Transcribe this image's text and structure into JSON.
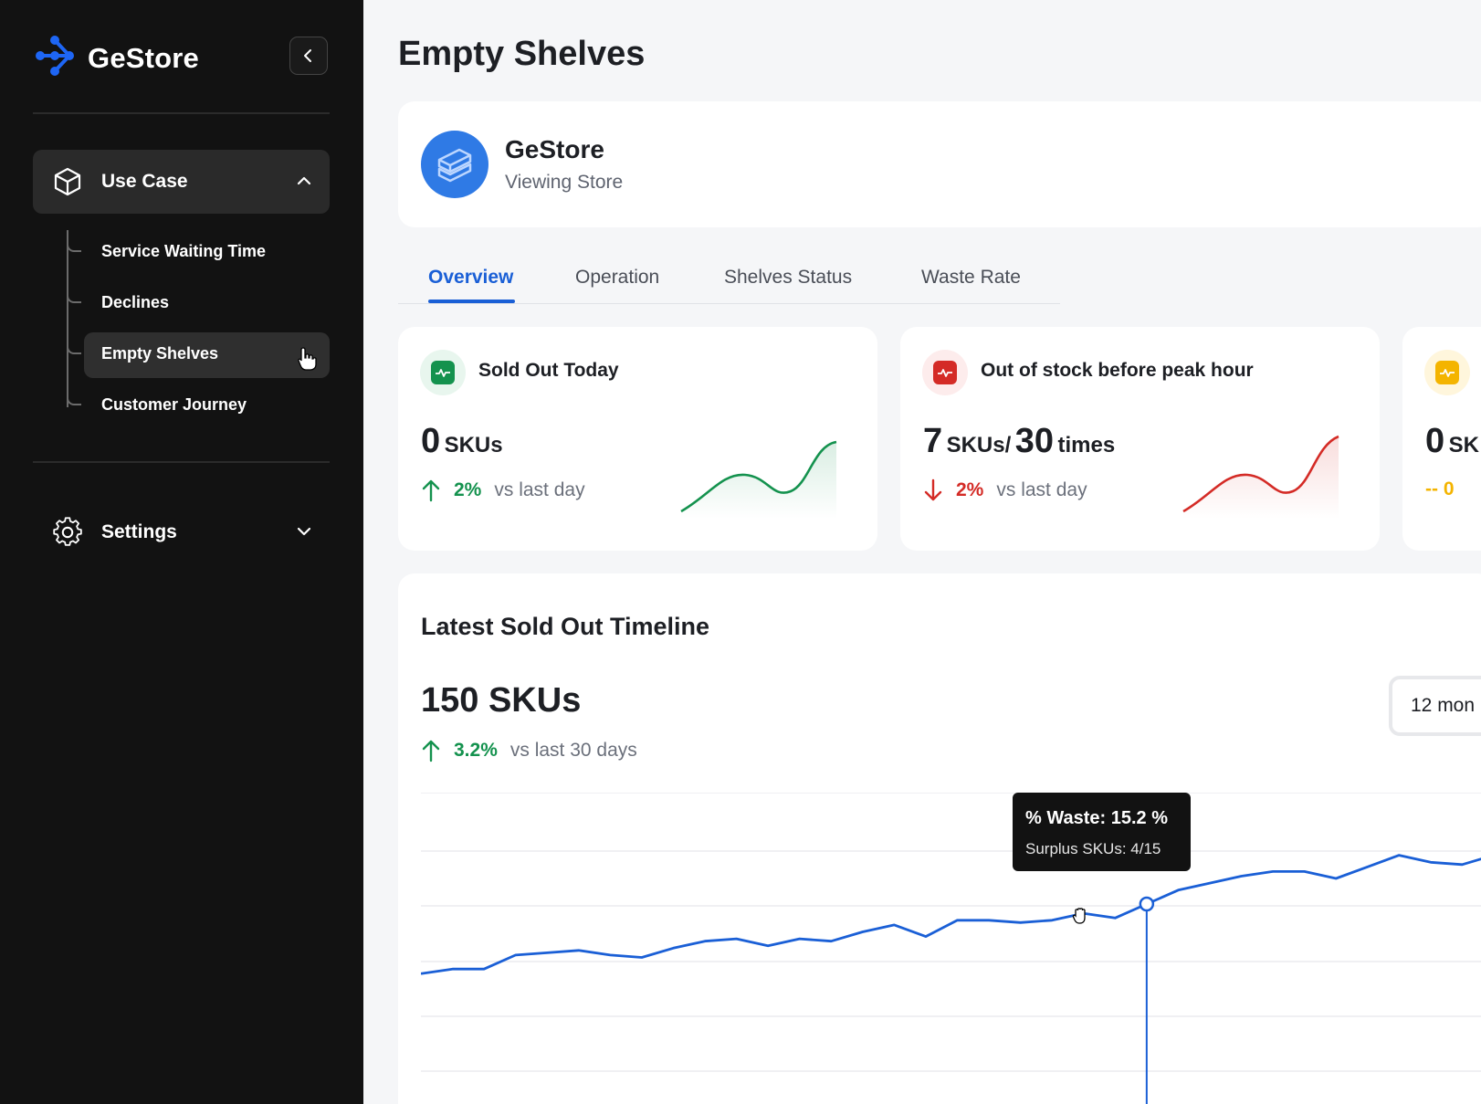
{
  "sidebar": {
    "brand_name": "GeStore",
    "use_case_label": "Use Case",
    "sub_items": [
      {
        "label": "Service Waiting Time"
      },
      {
        "label": "Declines"
      },
      {
        "label": "Empty Shelves"
      },
      {
        "label": "Customer Journey"
      }
    ],
    "settings_label": "Settings"
  },
  "main": {
    "page_title": "Empty Shelves",
    "store": {
      "name": "GeStore",
      "subtitle": "Viewing Store"
    },
    "tabs": [
      {
        "label": "Overview"
      },
      {
        "label": "Operation"
      },
      {
        "label": "Shelves Status"
      },
      {
        "label": "Waste Rate"
      }
    ],
    "kpis": [
      {
        "title": "Sold Out Today",
        "value": "0",
        "unit": "SKUs",
        "value2": "",
        "unit2": "",
        "delta": "2%",
        "delta_dir": "up",
        "compare": "vs last day",
        "color": "#14924e",
        "trend": [
          1,
          1,
          1,
          1,
          1
        ]
      },
      {
        "title": "Out of stock before peak hour",
        "value": "7",
        "unit": "SKUs/",
        "value2": "30",
        "unit2": "times",
        "delta": "2%",
        "delta_dir": "down",
        "compare": "vs last day",
        "color": "#d42b26",
        "trend": [
          1,
          1,
          1,
          1,
          1
        ]
      },
      {
        "title": "",
        "value": "0",
        "unit": "SK",
        "value2": "",
        "unit2": "",
        "delta": "-- 0",
        "delta_dir": "flat",
        "compare": "",
        "color": "#f4b400"
      }
    ],
    "timeline": {
      "title": "Latest Sold Out Timeline",
      "value": "150 SKUs",
      "delta": "3.2%",
      "compare": "vs last 30 days",
      "period_label": "12 mon",
      "tooltip_title": "% Waste: 15.2 %",
      "tooltip_sub": "Surplus SKUs: 4/15"
    }
  },
  "chart_data": {
    "type": "line",
    "title": "Latest Sold Out Timeline",
    "xlabel": "",
    "ylabel": "",
    "series": [
      {
        "values": [
          12.2,
          12.4,
          12.4,
          13.0,
          13.1,
          13.2,
          13.0,
          12.9,
          13.3,
          13.6,
          13.7,
          13.4,
          13.7,
          13.6,
          14.0,
          14.3,
          13.8,
          14.5,
          14.5,
          14.4,
          14.5,
          14.8,
          14.6,
          15.2,
          15.8,
          16.1,
          16.4,
          16.6,
          16.6,
          16.3,
          16.8,
          17.3,
          17.0,
          16.9,
          17.3
        ]
      }
    ],
    "highlight_index": 23,
    "highlight_value": 15.2,
    "grid": true,
    "legend": "none",
    "colors": {
      "line": "#1a5fd6"
    }
  }
}
